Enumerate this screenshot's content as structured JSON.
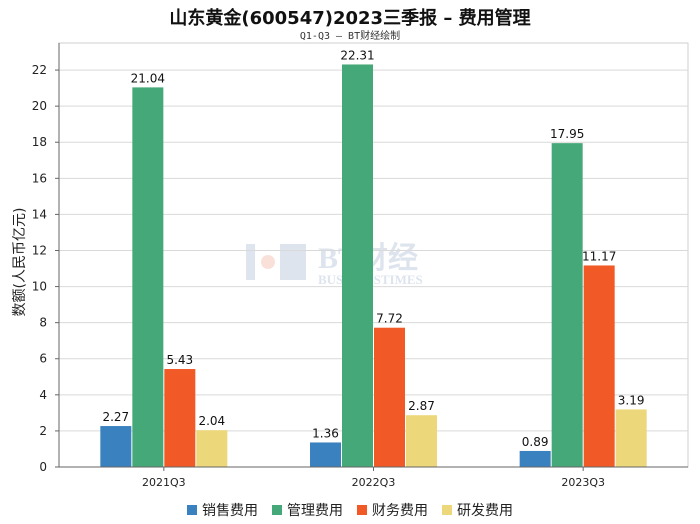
{
  "title": "山东黄金(600547)2023三季报 – 费用管理",
  "subtitle": "Q1-Q3 – BT财经绘制",
  "watermark": {
    "main": "BT财经",
    "sub": "BUSINESSTIMES"
  },
  "chart_data": {
    "type": "bar",
    "categories": [
      "2021Q3",
      "2022Q3",
      "2023Q3"
    ],
    "series": [
      {
        "name": "销售费用",
        "color": "#3a81bf",
        "values": [
          2.27,
          1.36,
          0.89
        ]
      },
      {
        "name": "管理费用",
        "color": "#45a878",
        "values": [
          21.04,
          22.31,
          17.95
        ]
      },
      {
        "name": "财务费用",
        "color": "#f15a27",
        "values": [
          5.43,
          7.72,
          11.17
        ]
      },
      {
        "name": "研发费用",
        "color": "#ecd77a",
        "values": [
          2.04,
          2.87,
          3.19
        ]
      }
    ],
    "ylabel": "数额(人民币亿元)",
    "xlabel": "",
    "ylim": [
      0,
      23.5
    ],
    "yticks": [
      0,
      2,
      4,
      6,
      8,
      10,
      12,
      14,
      16,
      18,
      20,
      22
    ],
    "grid": true,
    "legend_position": "bottom"
  }
}
